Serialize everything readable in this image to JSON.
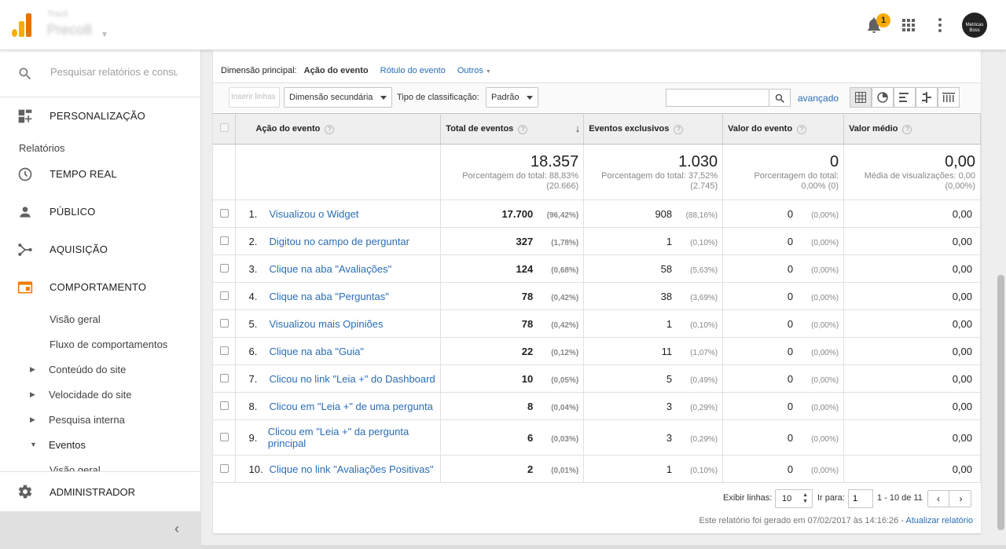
{
  "header": {
    "account_small": "Trazii",
    "account_big": "Preco8",
    "notification_count": "1",
    "avatar_text_1": "Metricas",
    "avatar_text_2": "Boss"
  },
  "sidebar": {
    "search_placeholder": "Pesquisar relatórios e consultas",
    "personalizacao": "PERSONALIZAÇÃO",
    "relatorios": "Relatórios",
    "tempo_real": "TEMPO REAL",
    "publico": "PÚBLICO",
    "aquisicao": "AQUISIÇÃO",
    "comportamento": "COMPORTAMENTO",
    "visao_geral": "Visão geral",
    "fluxo": "Fluxo de comportamentos",
    "conteudo": "Conteúdo do site",
    "velocidade": "Velocidade do site",
    "pesquisa": "Pesquisa interna",
    "eventos": "Eventos",
    "eventos_visao": "Visão geral",
    "administrador": "ADMINISTRADOR"
  },
  "dimension": {
    "label": "Dimensão principal:",
    "selected": "Ação do evento",
    "option2": "Rótulo do evento",
    "option3": "Outros"
  },
  "toolbar": {
    "plot_rows": "Inserir linhas",
    "secondary_dim": "Dimensão secundária",
    "sort_label": "Tipo de classificação:",
    "sort_value": "Padrão",
    "advanced": "avançado"
  },
  "table": {
    "headers": {
      "action": "Ação do evento",
      "total": "Total de eventos",
      "unique": "Eventos exclusivos",
      "value": "Valor do evento",
      "avg": "Valor médio"
    },
    "totals": {
      "total": "18.357",
      "total_sub1": "Porcentagem do total: 88,83%",
      "total_sub2": "(20.666)",
      "unique": "1.030",
      "unique_sub1": "Porcentagem do total: 37,52%",
      "unique_sub2": "(2.745)",
      "value": "0",
      "value_sub1": "Porcentagem do total:",
      "value_sub2": "0,00% (0)",
      "avg": "0,00",
      "avg_sub1": "Média de visualizações: 0,00",
      "avg_sub2": "(0,00%)"
    },
    "rows": [
      {
        "idx": "1.",
        "name": "Visualizou o Widget",
        "total": "17.700",
        "total_pct": "(96,42%)",
        "unique": "908",
        "unique_pct": "(88,16%)",
        "value": "0",
        "value_pct": "(0,00%)",
        "avg": "0,00"
      },
      {
        "idx": "2.",
        "name": "Digitou no campo de perguntar",
        "total": "327",
        "total_pct": "(1,78%)",
        "unique": "1",
        "unique_pct": "(0,10%)",
        "value": "0",
        "value_pct": "(0,00%)",
        "avg": "0,00"
      },
      {
        "idx": "3.",
        "name": "Clique na aba \"Avaliações\"",
        "total": "124",
        "total_pct": "(0,68%)",
        "unique": "58",
        "unique_pct": "(5,63%)",
        "value": "0",
        "value_pct": "(0,00%)",
        "avg": "0,00"
      },
      {
        "idx": "4.",
        "name": "Clique na aba \"Perguntas\"",
        "total": "78",
        "total_pct": "(0,42%)",
        "unique": "38",
        "unique_pct": "(3,69%)",
        "value": "0",
        "value_pct": "(0,00%)",
        "avg": "0,00"
      },
      {
        "idx": "5.",
        "name": "Visualizou mais Opiniões",
        "total": "78",
        "total_pct": "(0,42%)",
        "unique": "1",
        "unique_pct": "(0,10%)",
        "value": "0",
        "value_pct": "(0,00%)",
        "avg": "0,00"
      },
      {
        "idx": "6.",
        "name": "Clique na aba \"Guia\"",
        "total": "22",
        "total_pct": "(0,12%)",
        "unique": "11",
        "unique_pct": "(1,07%)",
        "value": "0",
        "value_pct": "(0,00%)",
        "avg": "0,00"
      },
      {
        "idx": "7.",
        "name": "Clicou no link \"Leia +\" do Dashboard",
        "total": "10",
        "total_pct": "(0,05%)",
        "unique": "5",
        "unique_pct": "(0,49%)",
        "value": "0",
        "value_pct": "(0,00%)",
        "avg": "0,00"
      },
      {
        "idx": "8.",
        "name": "Clicou em \"Leia +\" de uma pergunta",
        "total": "8",
        "total_pct": "(0,04%)",
        "unique": "3",
        "unique_pct": "(0,29%)",
        "value": "0",
        "value_pct": "(0,00%)",
        "avg": "0,00"
      },
      {
        "idx": "9.",
        "name": "Clicou em \"Leia +\" da pergunta principal",
        "total": "6",
        "total_pct": "(0,03%)",
        "unique": "3",
        "unique_pct": "(0,29%)",
        "value": "0",
        "value_pct": "(0,00%)",
        "avg": "0,00"
      },
      {
        "idx": "10.",
        "name": "Clique no link \"Avaliações Positivas\"",
        "total": "2",
        "total_pct": "(0,01%)",
        "unique": "1",
        "unique_pct": "(0,10%)",
        "value": "0",
        "value_pct": "(0,00%)",
        "avg": "0,00"
      }
    ]
  },
  "footer": {
    "rows_label": "Exibir linhas:",
    "rows_value": "10",
    "goto_label": "Ir para:",
    "goto_value": "1",
    "range": "1 - 10 de 11",
    "generated": "Este relatório foi gerado em 07/02/2017 às 14:16:26 - ",
    "refresh": "Atualizar relatório"
  },
  "colors": {
    "link": "#2a6db5",
    "accent_orange": "#f57c00",
    "logo_yellow": "#f9ab00"
  }
}
